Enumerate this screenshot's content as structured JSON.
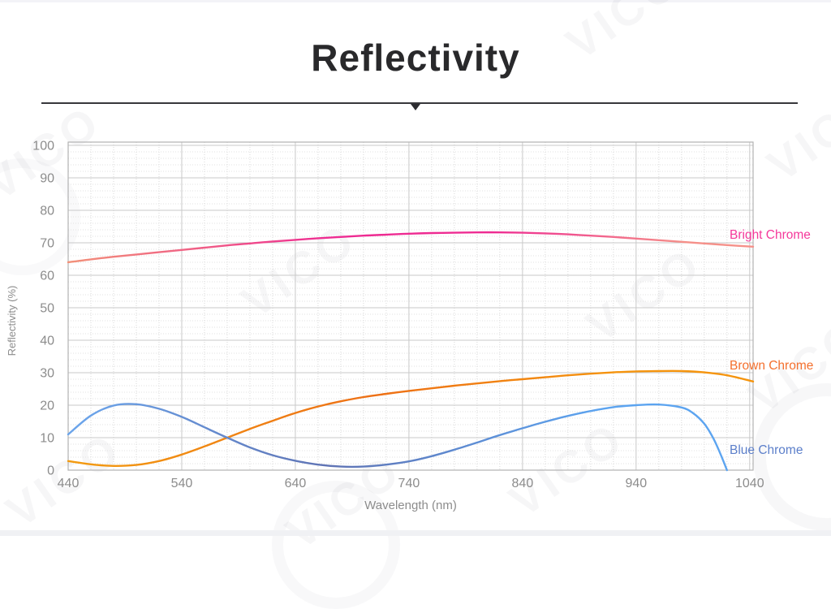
{
  "page": {
    "title": "Reflectivity",
    "watermark_text": "VICO"
  },
  "chart_data": {
    "type": "line",
    "title": "Reflectivity",
    "xlabel": "Wavelength (nm)",
    "ylabel": "Reflectivity (%)",
    "xlim": [
      440,
      1043
    ],
    "ylim": [
      0,
      101
    ],
    "x_ticks": [
      440,
      540,
      640,
      740,
      840,
      940,
      1040
    ],
    "y_ticks": [
      0,
      10,
      20,
      30,
      40,
      50,
      60,
      70,
      80,
      90,
      100
    ],
    "x_minor_step": 20,
    "y_minor_step": 2,
    "grid": true,
    "legend_position": "inline labels at right edge of plot",
    "grid_major_color": "#c9c9c9",
    "grid_minor_v_color": "#d8d8d8",
    "grid_minor_h_color": "#e2e2e2",
    "border_color": "#b2b2b2",
    "tick_color": "#8c8c8c",
    "series": [
      {
        "name": "Bright Chrome",
        "label_color": "#F5399B",
        "label_y": 72.5,
        "stroke_gradient": [
          "#F29179",
          "#EE2B92",
          "#EE2B92",
          "#F59089"
        ],
        "gradient_stops": [
          0,
          0.38,
          0.62,
          0.9
        ],
        "points": [
          [
            440,
            64.0
          ],
          [
            460,
            64.9
          ],
          [
            480,
            65.7
          ],
          [
            500,
            66.4
          ],
          [
            520,
            67.1
          ],
          [
            540,
            67.8
          ],
          [
            560,
            68.5
          ],
          [
            580,
            69.2
          ],
          [
            600,
            69.8
          ],
          [
            620,
            70.4
          ],
          [
            640,
            70.9
          ],
          [
            660,
            71.4
          ],
          [
            680,
            71.8
          ],
          [
            700,
            72.2
          ],
          [
            720,
            72.5
          ],
          [
            740,
            72.8
          ],
          [
            760,
            73.0
          ],
          [
            780,
            73.1
          ],
          [
            800,
            73.2
          ],
          [
            820,
            73.2
          ],
          [
            840,
            73.1
          ],
          [
            860,
            72.9
          ],
          [
            880,
            72.6
          ],
          [
            900,
            72.2
          ],
          [
            920,
            71.8
          ],
          [
            940,
            71.3
          ],
          [
            960,
            70.8
          ],
          [
            980,
            70.3
          ],
          [
            1000,
            69.8
          ],
          [
            1020,
            69.3
          ],
          [
            1043,
            68.8
          ]
        ]
      },
      {
        "name": "Brown Chrome",
        "label_color": "#F4702E",
        "label_y": 32.2,
        "stroke_gradient": [
          "#F39B10",
          "#ED6F15",
          "#F5940D"
        ],
        "gradient_stops": [
          0,
          0.45,
          0.8
        ],
        "points": [
          [
            440,
            2.8
          ],
          [
            460,
            1.8
          ],
          [
            480,
            1.3
          ],
          [
            500,
            1.6
          ],
          [
            520,
            2.8
          ],
          [
            540,
            4.8
          ],
          [
            560,
            7.3
          ],
          [
            580,
            10.0
          ],
          [
            600,
            12.7
          ],
          [
            620,
            15.2
          ],
          [
            640,
            17.6
          ],
          [
            660,
            19.6
          ],
          [
            680,
            21.2
          ],
          [
            700,
            22.5
          ],
          [
            720,
            23.5
          ],
          [
            740,
            24.4
          ],
          [
            760,
            25.2
          ],
          [
            780,
            26.0
          ],
          [
            800,
            26.7
          ],
          [
            820,
            27.4
          ],
          [
            840,
            28.0
          ],
          [
            860,
            28.6
          ],
          [
            880,
            29.2
          ],
          [
            900,
            29.7
          ],
          [
            920,
            30.1
          ],
          [
            940,
            30.4
          ],
          [
            960,
            30.5
          ],
          [
            980,
            30.5
          ],
          [
            1000,
            30.1
          ],
          [
            1020,
            29.2
          ],
          [
            1043,
            27.3
          ]
        ]
      },
      {
        "name": "Blue Chrome",
        "label_color": "#5C7FCA",
        "label_y": 6.3,
        "stroke_gradient": [
          "#6BA4EA",
          "#5F73B4",
          "#5CA4F0"
        ],
        "gradient_stops": [
          0.02,
          0.38,
          0.78
        ],
        "points": [
          [
            440,
            11.0
          ],
          [
            460,
            16.8
          ],
          [
            480,
            19.9
          ],
          [
            500,
            20.3
          ],
          [
            520,
            18.9
          ],
          [
            540,
            16.4
          ],
          [
            560,
            13.2
          ],
          [
            580,
            10.0
          ],
          [
            600,
            7.0
          ],
          [
            620,
            4.6
          ],
          [
            640,
            2.9
          ],
          [
            660,
            1.7
          ],
          [
            680,
            1.1
          ],
          [
            700,
            1.1
          ],
          [
            720,
            1.7
          ],
          [
            740,
            2.7
          ],
          [
            760,
            4.3
          ],
          [
            780,
            6.3
          ],
          [
            800,
            8.5
          ],
          [
            820,
            10.8
          ],
          [
            840,
            12.9
          ],
          [
            860,
            14.9
          ],
          [
            880,
            16.7
          ],
          [
            900,
            18.2
          ],
          [
            920,
            19.4
          ],
          [
            940,
            20.0
          ],
          [
            960,
            20.2
          ],
          [
            980,
            19.3
          ],
          [
            990,
            17.6
          ],
          [
            1000,
            14.3
          ],
          [
            1008,
            9.8
          ],
          [
            1014,
            5.2
          ],
          [
            1020,
            0.0
          ]
        ]
      }
    ]
  }
}
